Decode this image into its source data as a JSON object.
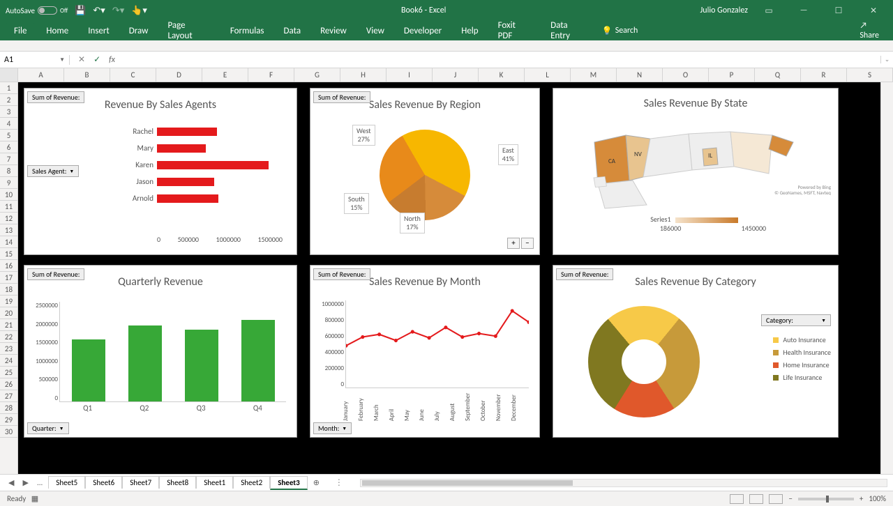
{
  "titlebar": {
    "autosave": "AutoSave",
    "autosave_state": "Off",
    "doc_title": "Book6 - Excel",
    "user": "Julio Gonzalez"
  },
  "ribbon": {
    "tabs": [
      "File",
      "Home",
      "Insert",
      "Draw",
      "Page Layout",
      "Formulas",
      "Data",
      "Review",
      "View",
      "Developer",
      "Help",
      "Foxit PDF",
      "Data Entry"
    ],
    "search": "Search",
    "share": "Share"
  },
  "formula": {
    "namebox": "A1",
    "fx": "fx"
  },
  "columns": [
    "A",
    "B",
    "C",
    "D",
    "E",
    "F",
    "G",
    "H",
    "I",
    "J",
    "K",
    "L",
    "M",
    "N",
    "O",
    "P",
    "Q",
    "R",
    "S"
  ],
  "rows_visible": 30,
  "slicer_label": "Sum of Revenue:",
  "agents_chart": {
    "title": "Revenue By Sales Agents",
    "slicer": "Sales Agent:",
    "labels": [
      "Rachel",
      "Mary",
      "Karen",
      "Jason",
      "Arnold"
    ],
    "values": [
      720000,
      580000,
      1330000,
      680000,
      730000
    ],
    "max": 1500000,
    "xticks": [
      "0",
      "500000",
      "1000000",
      "1500000"
    ],
    "color": "#e41a1c"
  },
  "quarterly_chart": {
    "title": "Quarterly Revenue",
    "slicer": "Quarter:",
    "labels": [
      "Q1",
      "Q2",
      "Q3",
      "Q4"
    ],
    "values": [
      1550000,
      1900000,
      1800000,
      2050000
    ],
    "ymax": 2500000,
    "yticks": [
      "0",
      "500000",
      "1000000",
      "1500000",
      "2000000",
      "2500000"
    ],
    "color": "#37a837"
  },
  "region_pie": {
    "title": "Sales Revenue By Region",
    "slices": [
      {
        "label": "East",
        "pct": 41,
        "color": "#f7b700"
      },
      {
        "label": "North",
        "pct": 17,
        "color": "#d68b3a"
      },
      {
        "label": "South",
        "pct": 15,
        "color": "#c77c2f"
      },
      {
        "label": "West",
        "pct": 27,
        "color": "#e88a1a"
      }
    ]
  },
  "month_chart": {
    "title": "Sales Revenue By Month",
    "slicer": "Month:",
    "labels": [
      "January",
      "February",
      "March",
      "April",
      "May",
      "June",
      "July",
      "August",
      "September",
      "October",
      "November",
      "December"
    ],
    "values": [
      480000,
      580000,
      610000,
      540000,
      640000,
      570000,
      690000,
      580000,
      620000,
      590000,
      880000,
      750000
    ],
    "ymax": 1000000,
    "yticks": [
      "0",
      "200000",
      "400000",
      "600000",
      "800000",
      "1000000"
    ],
    "color": "#e41a1c"
  },
  "state_map": {
    "title": "Sales Revenue By State",
    "legend_label": "Series1",
    "min_label": "186000",
    "max_label": "1450000",
    "credit1": "Powered by Bing",
    "credit2": "© GeoNames, MSFT, Navteq",
    "gradient_low": "#f5e3cb",
    "gradient_high": "#c97a2a",
    "states": {
      "CA": "CA",
      "NV": "NV",
      "IL": "IL"
    }
  },
  "category_donut": {
    "title": "Sales Revenue By Category",
    "slicer": "Category:",
    "items": [
      {
        "label": "Auto Insurance",
        "color": "#f7c948",
        "pct": 22
      },
      {
        "label": "Health Insurance",
        "color": "#c79a3a",
        "pct": 30
      },
      {
        "label": "Home Insurance",
        "color": "#e0582b",
        "pct": 18
      },
      {
        "label": "Life Insurance",
        "color": "#807820",
        "pct": 30
      }
    ]
  },
  "sheets": {
    "nav": "...",
    "tabs": [
      "Sheet5",
      "Sheet6",
      "Sheet7",
      "Sheet8",
      "Sheet1",
      "Sheet2",
      "Sheet3"
    ],
    "active": "Sheet3"
  },
  "statusbar": {
    "ready": "Ready",
    "zoom": "100%"
  }
}
